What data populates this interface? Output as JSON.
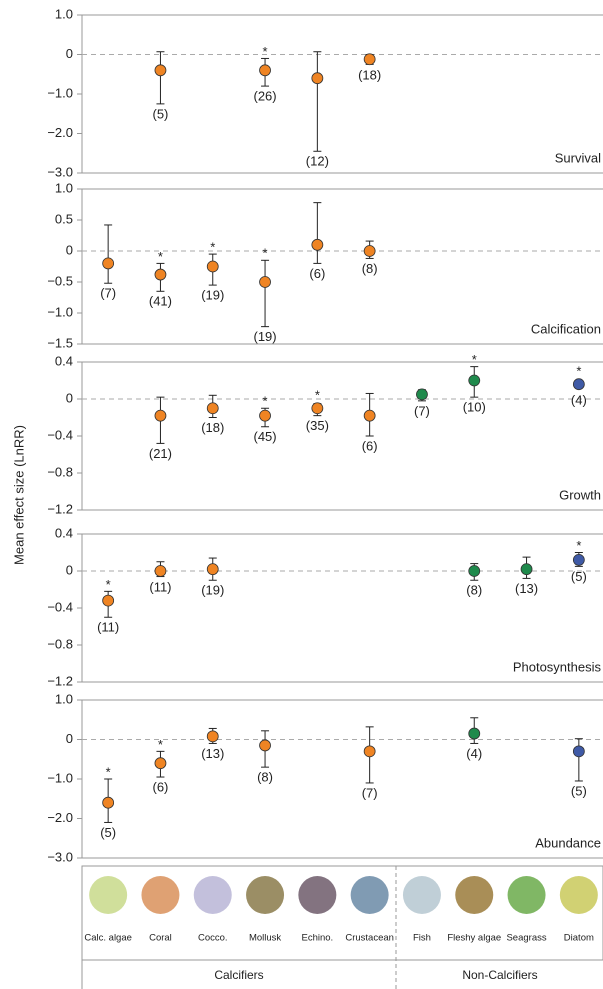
{
  "y_label": "Mean effect size (LnRR)",
  "x_axis": {
    "categories": [
      "Calc. algae",
      "Coral",
      "Cocco.",
      "Mollusk",
      "Echino.",
      "Crustacean",
      "Fish",
      "Fleshy algae",
      "Seagrass",
      "Diatom"
    ],
    "groups": [
      "Calcifiers",
      "Non-Calcifiers"
    ]
  },
  "chart_data": [
    {
      "type": "errorbar",
      "title": "Survival",
      "ylim": [
        -3,
        1
      ],
      "yticks": [
        {
          "value": 1,
          "label": "1.0"
        },
        0,
        {
          "value": -1,
          "label": "−1.0"
        },
        {
          "value": -2,
          "label": "−2.0"
        },
        {
          "value": -3,
          "label": "−3.0"
        }
      ],
      "values": [
        null,
        -0.4,
        null,
        -0.4,
        -0.6,
        -0.12,
        null,
        null,
        null,
        null
      ],
      "err_low": [
        null,
        -1.25,
        null,
        -0.8,
        -2.45,
        -0.25,
        null,
        null,
        null,
        null
      ],
      "err_high": [
        null,
        0.07,
        null,
        -0.1,
        0.07,
        0,
        null,
        null,
        null,
        null
      ],
      "colors": [
        null,
        "#ef8423",
        null,
        "#ef8423",
        "#ef8423",
        "#ef8423",
        null,
        null,
        null,
        null
      ],
      "annotations": [
        null,
        "(5)",
        null,
        "(26)",
        "(12)",
        "(18)",
        null,
        null,
        null,
        null
      ],
      "stars": [
        null,
        null,
        null,
        "*",
        null,
        null,
        null,
        null,
        null,
        null
      ]
    },
    {
      "type": "errorbar",
      "title": "Calcification",
      "ylim": [
        -1.5,
        1
      ],
      "yticks": [
        {
          "value": 1,
          "label": "1.0"
        },
        0.5,
        0,
        {
          "value": -0.5,
          "label": "−0.5"
        },
        {
          "value": -1,
          "label": "−1.0"
        },
        {
          "value": -1.5,
          "label": "−1.5"
        }
      ],
      "values": [
        -0.2,
        -0.38,
        -0.25,
        -0.5,
        0.1,
        0,
        null,
        null,
        null,
        null
      ],
      "err_low": [
        -0.52,
        -0.65,
        -0.55,
        -1.22,
        -0.2,
        -0.12,
        null,
        null,
        null,
        null
      ],
      "err_high": [
        0.42,
        -0.2,
        -0.05,
        -0.15,
        0.78,
        0.16,
        null,
        null,
        null,
        null
      ],
      "colors": [
        "#ef8423",
        "#ef8423",
        "#ef8423",
        "#ef8423",
        "#ef8423",
        "#ef8423",
        null,
        null,
        null,
        null
      ],
      "annotations": [
        "(7)",
        "(41)",
        "(19)",
        "(19)",
        "(6)",
        "(8)",
        null,
        null,
        null,
        null
      ],
      "stars": [
        null,
        "*",
        "*",
        "*",
        null,
        null,
        null,
        null,
        null,
        null
      ]
    },
    {
      "type": "errorbar",
      "title": "Growth",
      "ylim": [
        -1.2,
        0.4
      ],
      "yticks": [
        0.4,
        0,
        {
          "value": -0.4,
          "label": "−0.4"
        },
        {
          "value": -0.8,
          "label": "−0.8"
        },
        {
          "value": -1.2,
          "label": "−1.2"
        }
      ],
      "values": [
        null,
        -0.18,
        -0.1,
        -0.18,
        -0.1,
        -0.18,
        0.05,
        0.2,
        null,
        0.16
      ],
      "err_low": [
        null,
        -0.48,
        -0.2,
        -0.3,
        -0.18,
        -0.4,
        -0.02,
        0.02,
        null,
        0.12
      ],
      "err_high": [
        null,
        0.02,
        0.04,
        -0.1,
        -0.05,
        0.06,
        0.1,
        0.35,
        null,
        0.2
      ],
      "colors": [
        null,
        "#ef8423",
        "#ef8423",
        "#ef8423",
        "#ef8423",
        "#ef8423",
        "#1f8a4c",
        "#1f8a4c",
        null,
        "#3f5aa6"
      ],
      "annotations": [
        null,
        "(21)",
        "(18)",
        "(45)",
        "(35)",
        "(6)",
        "(7)",
        "(10)",
        null,
        "(4)"
      ],
      "stars": [
        null,
        null,
        null,
        "*",
        "*",
        null,
        null,
        "*",
        null,
        "*"
      ]
    },
    {
      "type": "errorbar",
      "title": "Photosynthesis",
      "ylim": [
        -1.2,
        0.4
      ],
      "yticks": [
        0.4,
        0,
        {
          "value": -0.4,
          "label": "−0.4"
        },
        {
          "value": -0.8,
          "label": "−0.8"
        },
        {
          "value": -1.2,
          "label": "−1.2"
        }
      ],
      "values": [
        -0.32,
        0,
        0.02,
        null,
        null,
        null,
        null,
        0,
        0.02,
        0.12
      ],
      "err_low": [
        -0.5,
        -0.06,
        -0.1,
        null,
        null,
        null,
        null,
        -0.1,
        -0.08,
        0.05
      ],
      "err_high": [
        -0.22,
        0.1,
        0.14,
        null,
        null,
        null,
        null,
        0.08,
        0.15,
        0.2
      ],
      "colors": [
        "#ef8423",
        "#ef8423",
        "#ef8423",
        null,
        null,
        null,
        null,
        "#1f8a4c",
        "#1f8a4c",
        "#3f5aa6"
      ],
      "annotations": [
        "(11)",
        "(11)",
        "(19)",
        null,
        null,
        null,
        null,
        "(8)",
        "(13)",
        "(5)"
      ],
      "stars": [
        "*",
        null,
        null,
        null,
        null,
        null,
        null,
        null,
        null,
        "*"
      ]
    },
    {
      "type": "errorbar",
      "title": "Abundance",
      "ylim": [
        -3,
        1
      ],
      "yticks": [
        {
          "value": 1,
          "label": "1.0"
        },
        0,
        {
          "value": -1,
          "label": "−1.0"
        },
        {
          "value": -2,
          "label": "−2.0"
        },
        {
          "value": -3,
          "label": "−3.0"
        }
      ],
      "values": [
        -1.6,
        -0.6,
        0.08,
        -0.15,
        null,
        -0.3,
        null,
        0.15,
        null,
        -0.3
      ],
      "err_low": [
        -2.1,
        -0.95,
        -0.1,
        -0.7,
        null,
        -1.1,
        null,
        -0.1,
        null,
        -1.05
      ],
      "err_high": [
        -1.0,
        -0.3,
        0.28,
        0.22,
        null,
        0.32,
        null,
        0.55,
        null,
        0.02
      ],
      "colors": [
        "#ef8423",
        "#ef8423",
        "#ef8423",
        "#ef8423",
        null,
        "#ef8423",
        null,
        "#1f8a4c",
        null,
        "#3f5aa6"
      ],
      "annotations": [
        "(5)",
        "(6)",
        "(13)",
        "(8)",
        null,
        "(7)",
        null,
        "(4)",
        null,
        "(5)"
      ],
      "stars": [
        "*",
        "*",
        null,
        null,
        null,
        null,
        null,
        null,
        null,
        null
      ]
    }
  ]
}
